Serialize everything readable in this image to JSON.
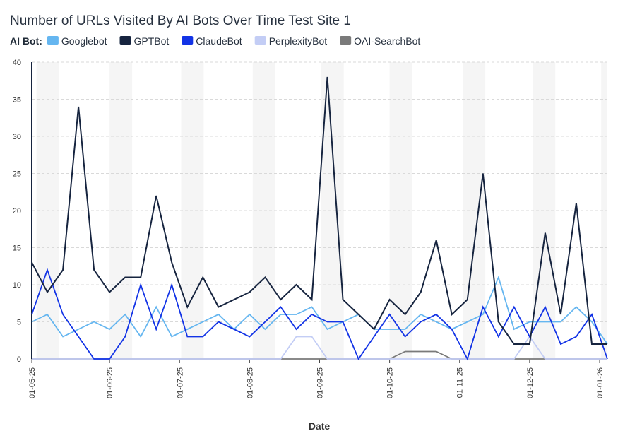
{
  "chart_data": {
    "type": "line",
    "title": "Number of URLs Visited By AI Bots Over Time Test Site 1",
    "legend_prefix": "AI Bot:",
    "legend_position": "top-left",
    "xlabel": "Date",
    "ylabel": "",
    "ylim": [
      0,
      40
    ],
    "yticks": [
      "0",
      "5",
      "10",
      "15",
      "20",
      "25",
      "30",
      "35",
      "40"
    ],
    "grid": true,
    "x_tick_labels": [
      "01-05-25",
      "01-06-25",
      "01-07-25",
      "01-08-25",
      "01-09-25",
      "01-10-25",
      "01-11-25",
      "01-12-25",
      "01-01-26"
    ],
    "x_tick_positions": [
      0,
      5,
      9.5,
      14,
      18.5,
      23,
      27.5,
      32,
      36.5
    ],
    "n_points": 38,
    "series": [
      {
        "name": "OAI-SearchBot",
        "color": "#7a7a7a",
        "values": [
          0,
          0,
          0,
          0,
          0,
          0,
          0,
          0,
          0,
          0,
          0,
          0,
          0,
          0,
          0,
          0,
          0,
          0,
          0,
          0,
          0,
          0,
          0,
          0,
          1,
          1,
          1,
          0,
          0,
          0,
          0,
          0,
          0,
          0,
          0,
          0,
          0,
          0
        ]
      },
      {
        "name": "PerplexityBot",
        "color": "#c3cdf5",
        "values": [
          0,
          0,
          0,
          0,
          0,
          0,
          0,
          0,
          0,
          0,
          0,
          0,
          0,
          0,
          0,
          0,
          0,
          3,
          3,
          0,
          0,
          0,
          0,
          0,
          0,
          0,
          0,
          0,
          0,
          0,
          0,
          0,
          3,
          0,
          0,
          0,
          0,
          0
        ]
      },
      {
        "name": "Googlebot",
        "color": "#65b6f0",
        "values": [
          5,
          6,
          3,
          4,
          5,
          4,
          6,
          3,
          7,
          3,
          4,
          5,
          6,
          4,
          6,
          4,
          6,
          6,
          7,
          4,
          5,
          6,
          4,
          4,
          4,
          6,
          5,
          4,
          5,
          6,
          11,
          4,
          5,
          5,
          5,
          7,
          5,
          2
        ]
      },
      {
        "name": "ClaudeBot",
        "color": "#1233e6",
        "values": [
          6,
          12,
          6,
          3,
          0,
          0,
          3,
          10,
          4,
          10,
          3,
          3,
          5,
          4,
          3,
          5,
          7,
          4,
          6,
          5,
          5,
          0,
          3,
          6,
          3,
          5,
          6,
          4,
          0,
          7,
          3,
          7,
          3,
          7,
          2,
          3,
          6,
          0
        ]
      },
      {
        "name": "GPTBot",
        "color": "#16243f",
        "values": [
          13,
          9,
          12,
          34,
          12,
          9,
          11,
          11,
          22,
          13,
          7,
          11,
          7,
          8,
          9,
          11,
          8,
          10,
          8,
          38,
          8,
          6,
          4,
          8,
          6,
          9,
          16,
          6,
          8,
          25,
          5,
          2,
          2,
          17,
          6,
          21,
          2,
          2
        ]
      }
    ],
    "legend_order": [
      "Googlebot",
      "GPTBot",
      "ClaudeBot",
      "PerplexityBot",
      "OAI-SearchBot"
    ]
  }
}
